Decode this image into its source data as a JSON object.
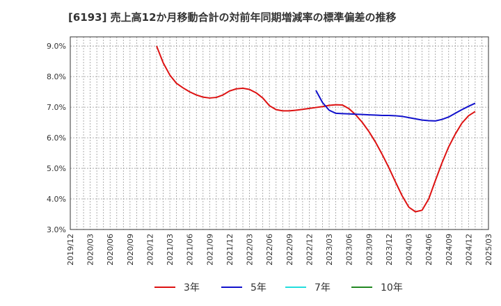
{
  "chart_data": {
    "type": "line",
    "title": "[6193]  売上高12か月移動合計の対前年同期増減率の標準偏差の推移",
    "xlabel": "",
    "ylabel": "",
    "ylim": [
      3.0,
      9.3
    ],
    "y_ticks": [
      "3.0%",
      "4.0%",
      "5.0%",
      "6.0%",
      "7.0%",
      "8.0%",
      "9.0%"
    ],
    "y_tick_values": [
      3.0,
      4.0,
      5.0,
      6.0,
      7.0,
      8.0,
      9.0
    ],
    "x_ticks": [
      "2019/12",
      "2020/03",
      "2020/06",
      "2020/09",
      "2020/12",
      "2021/03",
      "2021/06",
      "2021/09",
      "2021/12",
      "2022/03",
      "2022/06",
      "2022/09",
      "2022/12",
      "2023/03",
      "2023/06",
      "2023/09",
      "2023/12",
      "2024/03",
      "2024/06",
      "2024/09",
      "2024/12",
      "2025/03"
    ],
    "grid": true,
    "legend_position": "bottom",
    "series": [
      {
        "name": "3年",
        "color": "#dd1111",
        "points": [
          [
            "2021/01",
            9.0
          ],
          [
            "2021/02",
            8.45
          ],
          [
            "2021/03",
            8.05
          ],
          [
            "2021/04",
            7.78
          ],
          [
            "2021/05",
            7.63
          ],
          [
            "2021/06",
            7.5
          ],
          [
            "2021/07",
            7.4
          ],
          [
            "2021/08",
            7.33
          ],
          [
            "2021/09",
            7.3
          ],
          [
            "2021/10",
            7.32
          ],
          [
            "2021/11",
            7.4
          ],
          [
            "2021/12",
            7.53
          ],
          [
            "2022/01",
            7.6
          ],
          [
            "2022/02",
            7.62
          ],
          [
            "2022/03",
            7.58
          ],
          [
            "2022/04",
            7.47
          ],
          [
            "2022/05",
            7.3
          ],
          [
            "2022/06",
            7.05
          ],
          [
            "2022/07",
            6.92
          ],
          [
            "2022/08",
            6.88
          ],
          [
            "2022/09",
            6.88
          ],
          [
            "2022/10",
            6.9
          ],
          [
            "2022/11",
            6.93
          ],
          [
            "2022/12",
            6.96
          ],
          [
            "2023/01",
            6.99
          ],
          [
            "2023/02",
            7.02
          ],
          [
            "2023/03",
            7.06
          ],
          [
            "2023/04",
            7.08
          ],
          [
            "2023/05",
            7.07
          ],
          [
            "2023/06",
            6.95
          ],
          [
            "2023/07",
            6.75
          ],
          [
            "2023/08",
            6.5
          ],
          [
            "2023/09",
            6.2
          ],
          [
            "2023/10",
            5.85
          ],
          [
            "2023/11",
            5.45
          ],
          [
            "2023/12",
            5.02
          ],
          [
            "2024/01",
            4.55
          ],
          [
            "2024/02",
            4.1
          ],
          [
            "2024/03",
            3.73
          ],
          [
            "2024/04",
            3.58
          ],
          [
            "2024/05",
            3.63
          ],
          [
            "2024/06",
            4.0
          ],
          [
            "2024/07",
            4.6
          ],
          [
            "2024/08",
            5.18
          ],
          [
            "2024/09",
            5.7
          ],
          [
            "2024/10",
            6.12
          ],
          [
            "2024/11",
            6.48
          ],
          [
            "2024/12",
            6.72
          ],
          [
            "2025/01",
            6.86
          ]
        ]
      },
      {
        "name": "5年",
        "color": "#1111cc",
        "points": [
          [
            "2023/01",
            7.55
          ],
          [
            "2023/02",
            7.15
          ],
          [
            "2023/03",
            6.9
          ],
          [
            "2023/04",
            6.8
          ],
          [
            "2023/05",
            6.79
          ],
          [
            "2023/06",
            6.78
          ],
          [
            "2023/07",
            6.77
          ],
          [
            "2023/08",
            6.76
          ],
          [
            "2023/09",
            6.75
          ],
          [
            "2023/10",
            6.74
          ],
          [
            "2023/11",
            6.73
          ],
          [
            "2023/12",
            6.73
          ],
          [
            "2024/01",
            6.72
          ],
          [
            "2024/02",
            6.7
          ],
          [
            "2024/03",
            6.66
          ],
          [
            "2024/04",
            6.62
          ],
          [
            "2024/05",
            6.58
          ],
          [
            "2024/06",
            6.56
          ],
          [
            "2024/07",
            6.55
          ],
          [
            "2024/08",
            6.6
          ],
          [
            "2024/09",
            6.68
          ],
          [
            "2024/10",
            6.8
          ],
          [
            "2024/11",
            6.92
          ],
          [
            "2024/12",
            7.03
          ],
          [
            "2025/01",
            7.13
          ]
        ]
      },
      {
        "name": "7年",
        "color": "#22dddd",
        "points": []
      },
      {
        "name": "10年",
        "color": "#228822",
        "points": []
      }
    ]
  }
}
